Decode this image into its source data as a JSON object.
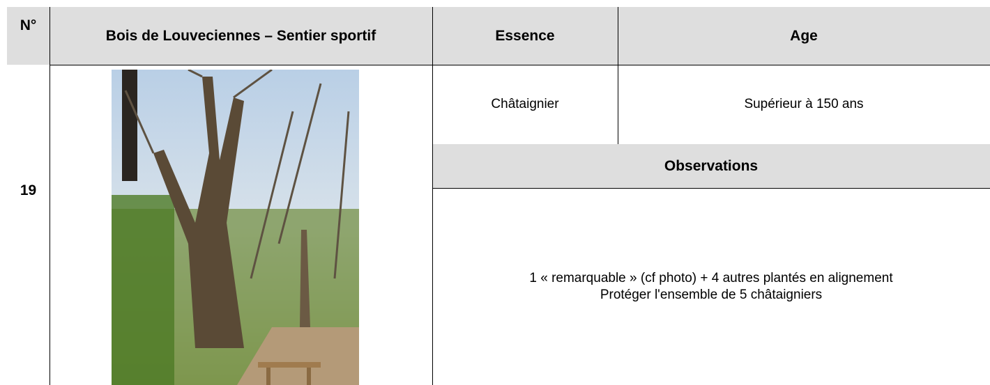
{
  "table": {
    "header": [
      "N°",
      "Bois de Louveciennes – Sentier sportif",
      "Essence",
      "Age"
    ],
    "number": "19",
    "essence": "Châtaignier",
    "age": "Supérieur à 150 ans",
    "observations_header": "Observations",
    "observations": [
      "1 « remarquable » (cf photo) + 4 autres plantés en alignement",
      "Protéger l'ensemble de 5 châtaigniers"
    ]
  }
}
